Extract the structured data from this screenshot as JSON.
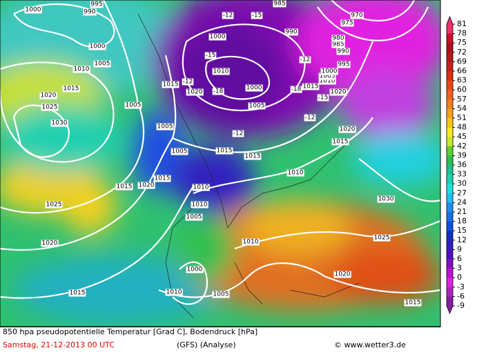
{
  "map": {
    "isobar_labels": [
      1000,
      990,
      995,
      1000,
      1005,
      1010,
      1015,
      1020,
      1025,
      1030,
      1025,
      1020,
      1015,
      1015,
      1020,
      1015,
      1005,
      1005,
      1005,
      1015,
      1020,
      1010,
      1000,
      1000,
      1005,
      1015,
      1015,
      1010,
      1010,
      1010,
      1005,
      1010,
      1000,
      1010,
      1005,
      1030,
      1025,
      1020,
      1015,
      1020,
      1015,
      1020,
      1015,
      1010,
      1005,
      1000,
      995,
      990,
      985,
      980,
      975,
      970,
      990,
      985
    ],
    "temperature_labels": [
      -12,
      -15,
      -12,
      -15,
      -18,
      -12,
      -12,
      -18,
      -15,
      -12
    ],
    "colorbar": {
      "labels": [
        81,
        78,
        75,
        72,
        69,
        66,
        63,
        60,
        57,
        54,
        51,
        48,
        45,
        42,
        39,
        36,
        33,
        30,
        27,
        24,
        21,
        18,
        15,
        12,
        9,
        6,
        3,
        0,
        -3,
        -6,
        -9
      ],
      "colors": [
        "#e8336c",
        "#c8102e",
        "#a8101e",
        "#b01a1a",
        "#c82020",
        "#d83010",
        "#e84818",
        "#f06020",
        "#f08020",
        "#f8a020",
        "#f8c818",
        "#f8e820",
        "#c8e830",
        "#60d030",
        "#30c050",
        "#20c090",
        "#20d0b0",
        "#20e0e0",
        "#20c0f0",
        "#2090f0",
        "#1870e8",
        "#1050e0",
        "#1030c0",
        "#3020c0",
        "#5010c0",
        "#8010c0",
        "#c010d0",
        "#e020e0",
        "#b020c0",
        "#8020a0"
      ]
    }
  },
  "footer": {
    "title": "850 hpa pseudopotentielle Temperatur [Grad C], Bodendruck [hPa]",
    "date": "Samstag, 21-12-2013  00 UTC",
    "model": "(GFS)  (Analyse)",
    "credit": "© www.wetter3.de"
  }
}
